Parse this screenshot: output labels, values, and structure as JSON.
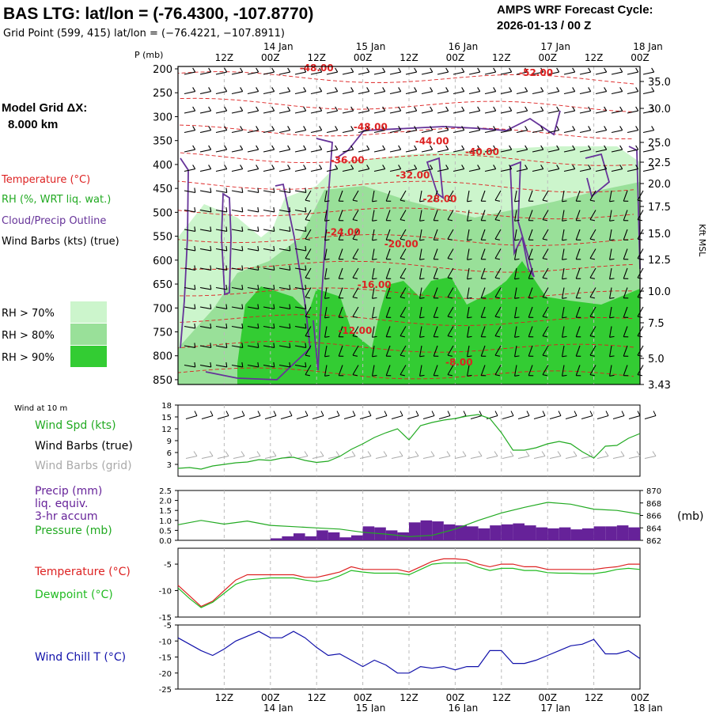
{
  "header": {
    "title": "BAS LTG:  lat/lon = (-76.4300, -107.8770)",
    "grid_point": "Grid Point (599, 415) lat/lon = (−76.4221, −107.8911)",
    "cycle_label": "AMPS WRF Forecast Cycle:",
    "cycle_value": "2026-01-13 / 00  Z",
    "model_grid_label": "Model Grid ΔX:",
    "model_grid_value": "8.000 km",
    "p_axis_label": "P (mb)",
    "kft_label": "Kft MSL"
  },
  "time_axis": {
    "ticks": [
      "12Z",
      "00Z",
      "12Z",
      "00Z",
      "12Z",
      "00Z",
      "12Z",
      "00Z",
      "12Z",
      "00Z"
    ],
    "dates": [
      "14 Jan",
      "15 Jan",
      "16 Jan",
      "17 Jan",
      "18 Jan"
    ]
  },
  "colors": {
    "temperature": "#dd2222",
    "rh": "#22aa22",
    "cloud": "#663399",
    "wind": "#000000",
    "wind_grid": "#aaaaaa",
    "precip": "#662299",
    "pressure": "#22aa22",
    "dewpoint": "#22bb22",
    "windchill": "#1111aa",
    "rh70": "#ccf5cc",
    "rh80": "#99e099",
    "rh90": "#33cc33"
  },
  "legend": {
    "temperature": "Temperature (°C)",
    "rh": "RH (%, WRT liq. wat.)",
    "cloud": "Cloud/Precip Outline",
    "wind": "Wind Barbs (kts) (true)",
    "rh70": "RH > 70%",
    "rh80": "RH > 80%",
    "rh90": "RH > 90%"
  },
  "panels_text": {
    "wind10": "Wind at 10 m",
    "windspd": "Wind Spd (kts)",
    "windbarbs_true": "Wind Barbs (true)",
    "windbarbs_grid": "Wind Barbs (grid)",
    "precip1": "Precip (mm)",
    "precip2": "liq. equiv.",
    "precip3": "3-hr accum",
    "pressure": "Pressure (mb)",
    "pressure_unit": "(mb)",
    "temperature": "Temperature (°C)",
    "dewpoint": "Dewpoint (°C)",
    "windchill": "Wind Chill T (°C)"
  },
  "chart_data": [
    {
      "type": "heatmap",
      "name": "cross-section",
      "p_levels": [
        "200",
        "250",
        "300",
        "350",
        "400",
        "450",
        "500",
        "550",
        "600",
        "650",
        "700",
        "750",
        "800",
        "850"
      ],
      "kft_levels": [
        "35.0",
        "30.0",
        "25.0",
        "22.5",
        "20.0",
        "17.5",
        "15.0",
        "12.5",
        "10.0",
        "7.5",
        "5.0",
        "3.43"
      ],
      "isotherm_labels": [
        {
          "text": "-48.00",
          "hour": 36,
          "p": 205
        },
        {
          "text": "-52.00",
          "hour": 93,
          "p": 215
        },
        {
          "text": "-48.00",
          "hour": 50,
          "p": 328
        },
        {
          "text": "-44.00",
          "hour": 66,
          "p": 358
        },
        {
          "text": "-40.00",
          "hour": 79,
          "p": 380
        },
        {
          "text": "-36.00",
          "hour": 44,
          "p": 398
        },
        {
          "text": "-32.00",
          "hour": 61,
          "p": 429
        },
        {
          "text": "-28.00",
          "hour": 68,
          "p": 479
        },
        {
          "text": "-24.00",
          "hour": 43,
          "p": 548
        },
        {
          "text": "-20.00",
          "hour": 58,
          "p": 573
        },
        {
          "text": "-16.00",
          "hour": 51,
          "p": 658
        },
        {
          "text": "-12.00",
          "hour": 46,
          "p": 754
        },
        {
          "text": "-8.00",
          "hour": 73,
          "p": 820
        }
      ]
    },
    {
      "type": "line",
      "name": "wind-speed-10m",
      "ylim": [
        0,
        18
      ],
      "yticks": [
        "3",
        "6",
        "9",
        "12",
        "15",
        "18"
      ],
      "x_hours": [
        0,
        3,
        6,
        9,
        12,
        15,
        18,
        21,
        24,
        27,
        30,
        33,
        36,
        39,
        42,
        45,
        48,
        51,
        54,
        57,
        60,
        63,
        66,
        69,
        72,
        75,
        78,
        81,
        84,
        87,
        90,
        93,
        96,
        99,
        102,
        105,
        108,
        111,
        114,
        117,
        120
      ],
      "series": [
        {
          "values": [
            2,
            2.2,
            1.8,
            2.6,
            3,
            3.4,
            3.6,
            4.2,
            4,
            4.6,
            4.8,
            4,
            3.5,
            3.8,
            5,
            6.8,
            8.2,
            9.8,
            11,
            12,
            9.2,
            12.8,
            13.6,
            14.2,
            14.6,
            15.2,
            15.6,
            14.6,
            11,
            6.6,
            6.6,
            7.2,
            8.2,
            8.8,
            8.2,
            6.2,
            4.6,
            7.6,
            7.8,
            9.6,
            10.8
          ]
        }
      ]
    },
    {
      "type": "bar",
      "name": "precip-pressure",
      "ylim": [
        0,
        2.5
      ],
      "yticks": [
        "0.0",
        "0.5",
        "1.0",
        "1.5",
        "2.0",
        "2.5"
      ],
      "y2lim": [
        862,
        870
      ],
      "y2ticks": [
        "862",
        "864",
        "866",
        "868",
        "870"
      ],
      "precip": {
        "x_hours": [
          3,
          6,
          9,
          12,
          15,
          18,
          21,
          24,
          27,
          30,
          33,
          36,
          39,
          42,
          45,
          48,
          51,
          54,
          57,
          60,
          63,
          66,
          69,
          72,
          75,
          78,
          81,
          84,
          87,
          90,
          93,
          96,
          99,
          102,
          105,
          108,
          111,
          114,
          117,
          120
        ],
        "values": [
          0,
          0,
          0,
          0,
          0,
          0,
          0,
          0,
          0.1,
          0.2,
          0.35,
          0.2,
          0.5,
          0.4,
          0.15,
          0.25,
          0.7,
          0.65,
          0.5,
          0.4,
          0.9,
          1.0,
          0.95,
          0.8,
          0.75,
          0.7,
          0.6,
          0.75,
          0.8,
          0.85,
          0.75,
          0.65,
          0.6,
          0.65,
          0.55,
          0.6,
          0.7,
          0.7,
          0.75,
          0.65
        ]
      },
      "pressure": {
        "x_hours": [
          0,
          6,
          12,
          18,
          24,
          30,
          36,
          42,
          48,
          54,
          60,
          66,
          72,
          78,
          84,
          90,
          96,
          102,
          108,
          114,
          120
        ],
        "values": [
          864.5,
          865.2,
          864.6,
          865.1,
          864.4,
          864.2,
          864.0,
          863.8,
          863.3,
          863.0,
          862.6,
          862.8,
          863.8,
          865.2,
          866.4,
          867.3,
          868.1,
          867.8,
          867.0,
          866.8,
          866.2
        ]
      }
    },
    {
      "type": "line",
      "name": "temperature-dewpoint",
      "ylim": [
        -15,
        -2
      ],
      "yticks": [
        "-5",
        "-10",
        "-15"
      ],
      "x_hours": [
        0,
        3,
        6,
        9,
        12,
        15,
        18,
        21,
        24,
        27,
        30,
        33,
        36,
        39,
        42,
        45,
        48,
        51,
        54,
        57,
        60,
        63,
        66,
        69,
        72,
        75,
        78,
        81,
        84,
        87,
        90,
        93,
        96,
        99,
        102,
        105,
        108,
        111,
        114,
        117,
        120
      ],
      "series": [
        {
          "values": [
            -9,
            -11,
            -13,
            -12,
            -10,
            -8,
            -7,
            -7,
            -7,
            -7,
            -7,
            -7.5,
            -7.5,
            -7,
            -6.5,
            -5.5,
            -6,
            -6,
            -6,
            -6,
            -6.5,
            -5.5,
            -4.5,
            -4,
            -4,
            -4.2,
            -5,
            -5.5,
            -5,
            -5,
            -5.5,
            -5.5,
            -6,
            -6,
            -6,
            -6,
            -6,
            -5.7,
            -5.5,
            -5,
            -5
          ]
        },
        {
          "values": [
            -9.5,
            -11.5,
            -13.2,
            -12.2,
            -10.5,
            -8.8,
            -8,
            -7.8,
            -7.6,
            -7.6,
            -7.6,
            -8,
            -8.3,
            -8,
            -7.2,
            -6.2,
            -6.5,
            -6.7,
            -6.7,
            -6.7,
            -7,
            -6,
            -5,
            -4.8,
            -4.8,
            -4.8,
            -5.6,
            -6.2,
            -5.8,
            -5.8,
            -6.2,
            -6.2,
            -6.6,
            -6.7,
            -6.7,
            -6.8,
            -6.8,
            -6.5,
            -6,
            -5.8,
            -6
          ]
        }
      ]
    },
    {
      "type": "line",
      "name": "wind-chill",
      "ylim": [
        -25,
        -5
      ],
      "yticks": [
        "-5",
        "-10",
        "-15",
        "-20",
        "-25"
      ],
      "x_hours": [
        0,
        3,
        6,
        9,
        12,
        15,
        18,
        21,
        24,
        27,
        30,
        33,
        36,
        39,
        42,
        45,
        48,
        51,
        54,
        57,
        60,
        63,
        66,
        69,
        72,
        75,
        78,
        81,
        84,
        87,
        90,
        93,
        96,
        99,
        102,
        105,
        108,
        111,
        114,
        117,
        120
      ],
      "series": [
        {
          "values": [
            -9,
            -11,
            -13,
            -14.5,
            -12.5,
            -10,
            -8.5,
            -7,
            -9,
            -9,
            -7,
            -9,
            -12,
            -14.5,
            -14,
            -16,
            -18,
            -16,
            -17.5,
            -20,
            -20,
            -18,
            -18.5,
            -18,
            -19,
            -18,
            -18,
            -13,
            -13,
            -17,
            -17,
            -16,
            -14.5,
            -13,
            -11.5,
            -11,
            -9.5,
            -14,
            -14,
            -13,
            -15.5
          ]
        }
      ]
    }
  ]
}
